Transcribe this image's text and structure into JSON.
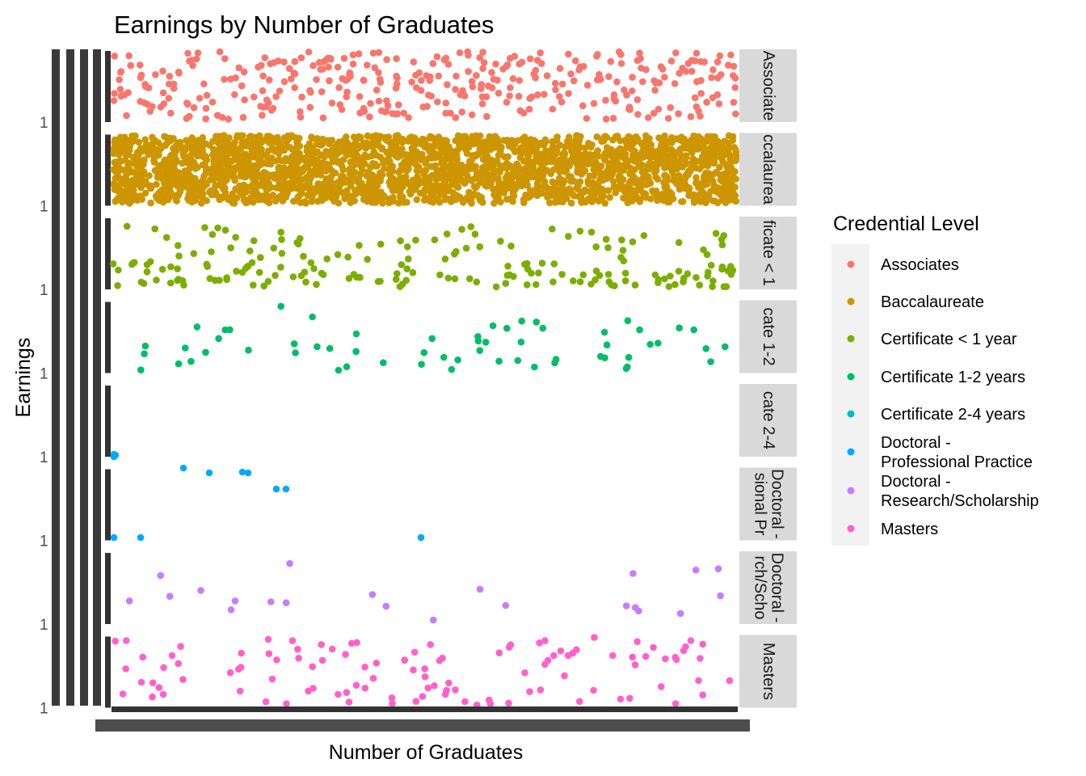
{
  "chart_data": {
    "type": "scatter",
    "title": "Earnings by Number of Graduates",
    "xlabel": "Number of Graduates",
    "ylabel": "Earnings",
    "facet_by": "Credential Level",
    "legend": {
      "title": "Credential Level",
      "position": "right",
      "entries": [
        {
          "label": "Associates",
          "color": "#F8766D"
        },
        {
          "label": "Baccalaureate",
          "color": "#CD9600"
        },
        {
          "label": "Certificate < 1 year",
          "color": "#7CAE00"
        },
        {
          "label": "Certificate 1-2 years",
          "color": "#00BE67"
        },
        {
          "label": "Certificate 2-4 years",
          "color": "#00BFC4"
        },
        {
          "label": "Doctoral -\nProfessional Practice",
          "color": "#00A9FF"
        },
        {
          "label": "Doctoral -\nResearch/Scholarship",
          "color": "#C77CFF"
        },
        {
          "label": "Masters",
          "color": "#FF61CC"
        }
      ]
    },
    "facets": [
      {
        "strip": "Associate",
        "series": "Associates",
        "color": "#F8766D",
        "density": "medium",
        "point_count": 360
      },
      {
        "strip": "ccalaurea",
        "series": "Baccalaureate",
        "color": "#CD9600",
        "density": "very dense",
        "point_count": 2600
      },
      {
        "strip": "ficate < 1",
        "series": "Certificate < 1 year",
        "color": "#7CAE00",
        "density": "sparse",
        "point_count": 190
      },
      {
        "strip": "cate 1-2",
        "series": "Certificate 1-2 years",
        "color": "#00BE67",
        "density": "sparse",
        "point_count": 60
      },
      {
        "strip": "cate 2-4",
        "series": "Certificate 2-4 years",
        "color": "#00BFC4",
        "density": "very sparse",
        "point_count": 1
      },
      {
        "strip": [
          "Doctoral -",
          "sional Pr"
        ],
        "series": "Doctoral - Professional Practice",
        "color": "#00A9FF",
        "density": "very sparse",
        "point_count": 11
      },
      {
        "strip": [
          "Doctoral -",
          "rch/Scho"
        ],
        "series": "Doctoral - Research/Scholarship",
        "color": "#C77CFF",
        "density": "very sparse",
        "point_count": 22
      },
      {
        "strip": "Masters",
        "series": "Masters",
        "color": "#FF61CC",
        "density": "medium",
        "point_count": 110
      }
    ],
    "y_tick_label_visible": "1",
    "tick_labels_overplotted": true,
    "grid": false,
    "panel_background": "#ffffff",
    "strip_background": "#d9d9d9"
  }
}
